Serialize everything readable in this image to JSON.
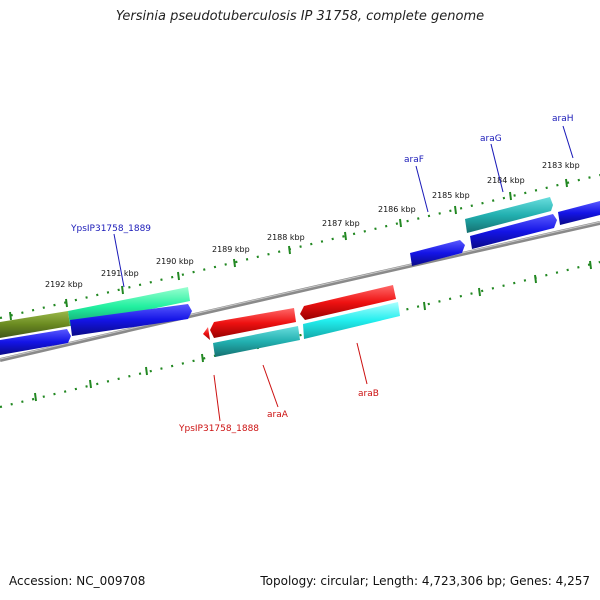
{
  "title": "Yersinia pseudotuberculosis IP 31758, complete genome",
  "footer": {
    "accession": "Accession: NC_009708",
    "summary": "Topology: circular; Length: 4,723,306 bp; Genes: 4,257"
  },
  "colors": {
    "tick": "#228822",
    "backbone": "#8a8a8a",
    "forward_label": "#1a1ab8",
    "reverse_label": "#cc1111",
    "blue": "#1414e6",
    "red": "#ee1111",
    "teal": "#22b0b0",
    "cyan": "#22eeee",
    "spring": "#22f0a0",
    "olive": "#6a8a20"
  },
  "scale_labels": [
    "2183 kbp",
    "2184 kbp",
    "2185 kbp",
    "2186 kbp",
    "2187 kbp",
    "2188 kbp",
    "2189 kbp",
    "2190 kbp",
    "2191 kbp",
    "2192 kbp"
  ],
  "gene_labels": {
    "forward": [
      "araH",
      "araG",
      "araF",
      "YpsIP31758_1889"
    ],
    "reverse": [
      "araB",
      "araA",
      "YpsIP31758_1888"
    ]
  }
}
